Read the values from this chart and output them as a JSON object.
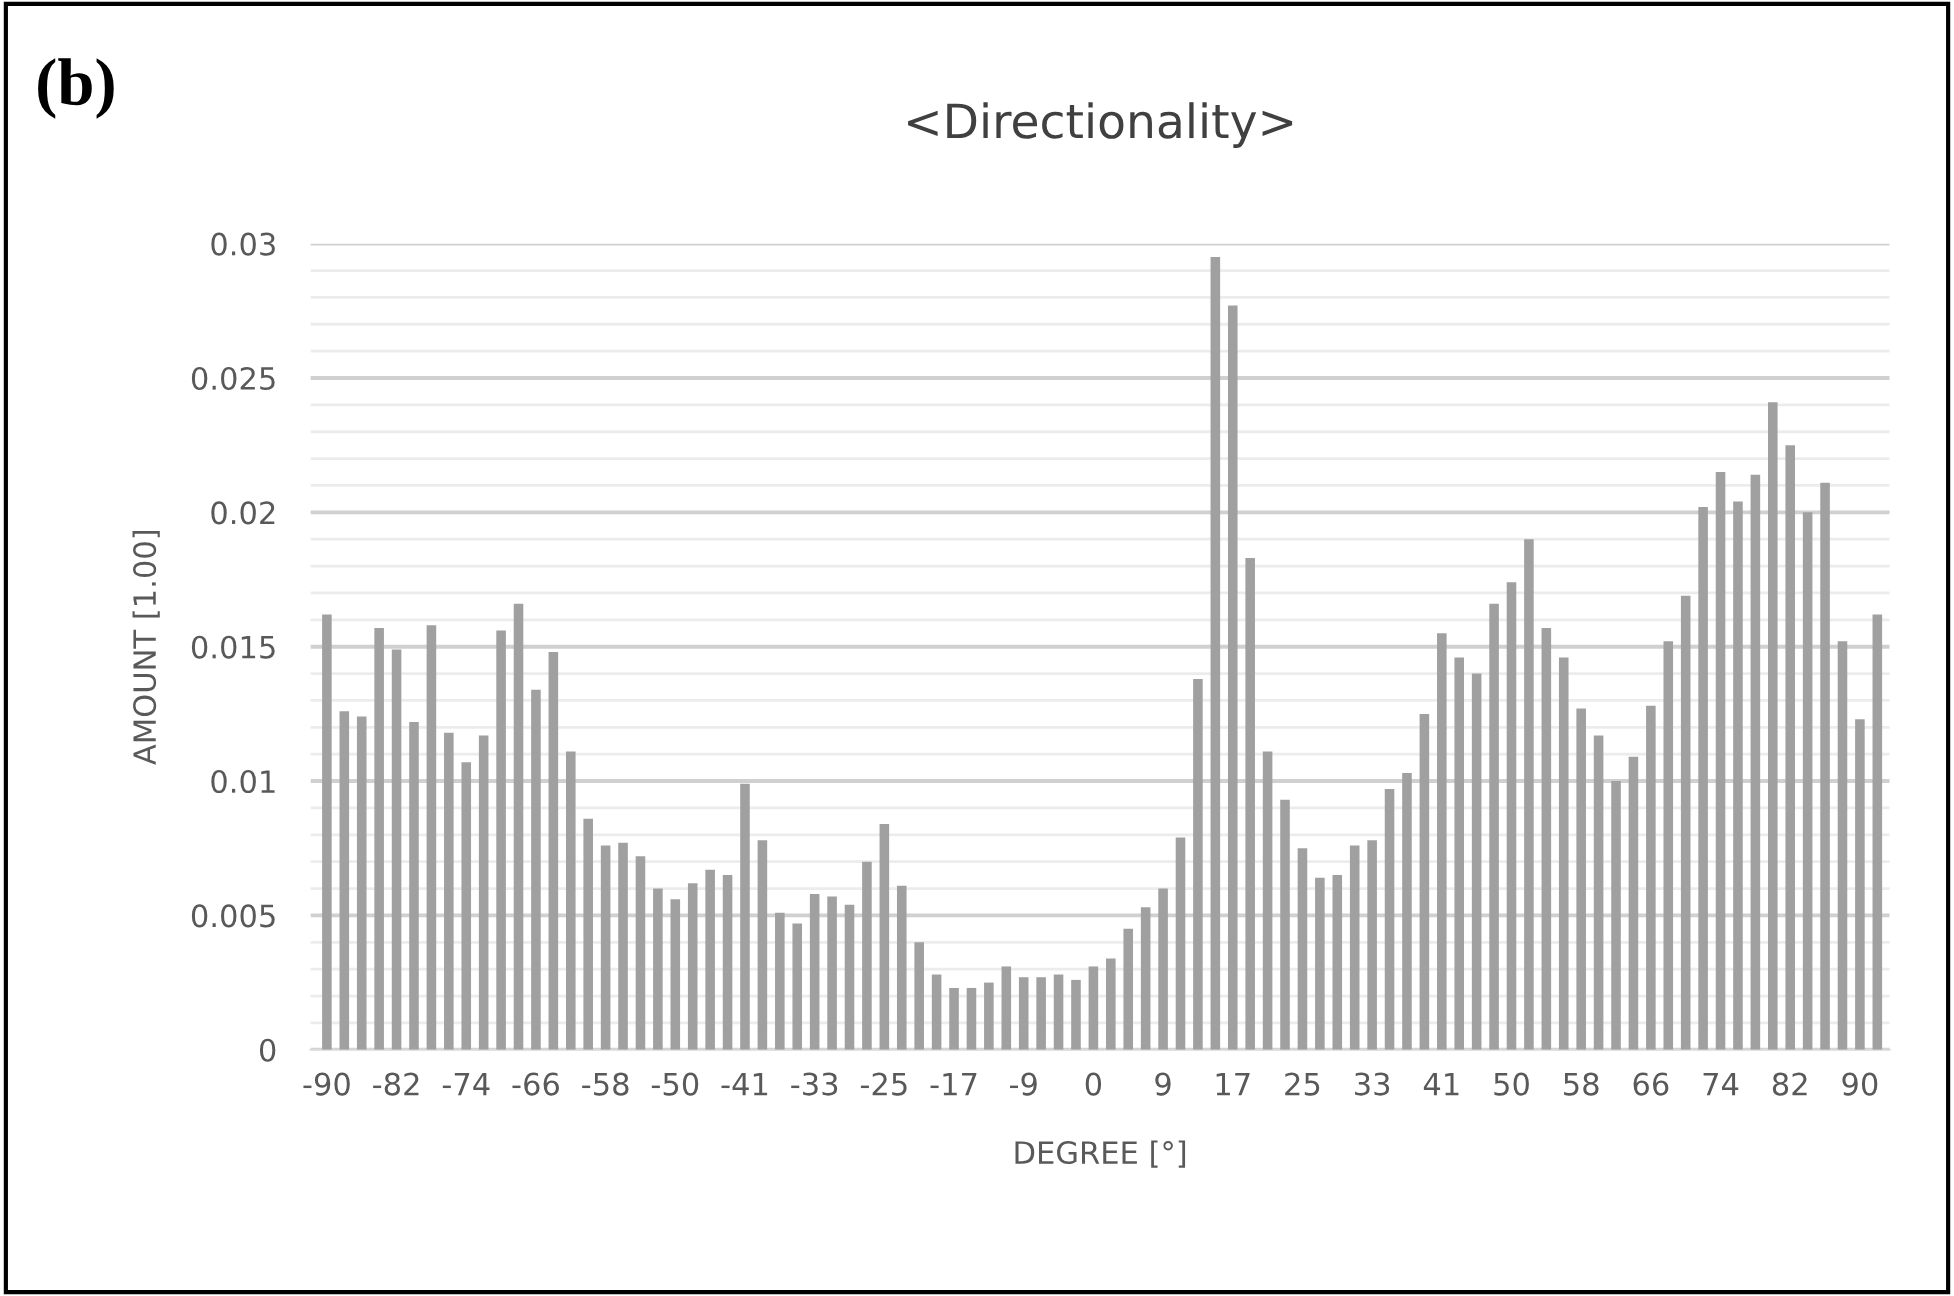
{
  "chart_data": {
    "type": "bar",
    "title": "<Directionality>",
    "xlabel": "DEGREE [°]",
    "ylabel": "AMOUNT [1.00]",
    "annotations": [
      "(b)"
    ],
    "categories": [
      "-90",
      null,
      null,
      null,
      "-82",
      null,
      null,
      null,
      "-74",
      null,
      null,
      null,
      "-66",
      null,
      null,
      null,
      "-58",
      null,
      null,
      null,
      "-50",
      null,
      null,
      null,
      "-41",
      null,
      null,
      null,
      "-33",
      null,
      null,
      null,
      "-25",
      null,
      null,
      null,
      "-17",
      null,
      null,
      null,
      "-9",
      null,
      null,
      null,
      "0",
      null,
      null,
      null,
      "9",
      null,
      null,
      null,
      "17",
      null,
      null,
      null,
      "25",
      null,
      null,
      null,
      "33",
      null,
      null,
      null,
      "41",
      null,
      null,
      null,
      "50",
      null,
      null,
      null,
      "58",
      null,
      null,
      null,
      "66",
      null,
      null,
      null,
      "74",
      null,
      null,
      null,
      "82",
      null,
      null,
      null,
      "90",
      null
    ],
    "values": [
      0.0162,
      0.0126,
      0.0124,
      0.0157,
      0.0149,
      0.0122,
      0.0158,
      0.0118,
      0.0107,
      0.0117,
      0.0156,
      0.0166,
      0.0134,
      0.0148,
      0.0111,
      0.0086,
      0.0076,
      0.0077,
      0.0072,
      0.006,
      0.0056,
      0.0062,
      0.0067,
      0.0065,
      0.0099,
      0.0078,
      0.0051,
      0.0047,
      0.0058,
      0.0057,
      0.0054,
      0.007,
      0.0084,
      0.0061,
      0.004,
      0.0028,
      0.0023,
      0.0023,
      0.0025,
      0.0031,
      0.0027,
      0.0027,
      0.0028,
      0.0026,
      0.0031,
      0.0034,
      0.0045,
      0.0053,
      0.006,
      0.0079,
      0.0138,
      0.0295,
      0.0277,
      0.0183,
      0.0111,
      0.0093,
      0.0075,
      0.0064,
      0.0065,
      0.0076,
      0.0078,
      0.0097,
      0.0103,
      0.0125,
      0.0155,
      0.0146,
      0.014,
      0.0166,
      0.0174,
      0.019,
      0.0157,
      0.0146,
      0.0127,
      0.0117,
      0.01,
      0.0109,
      0.0128,
      0.0152,
      0.0169,
      0.0202,
      0.0215,
      0.0204,
      0.0214,
      0.0241,
      0.0225,
      0.02,
      0.0211,
      0.0152,
      0.0123,
      0.0162
    ],
    "color": "#a0a0a0",
    "ylim": [
      0,
      0.03
    ],
    "yticks": [
      0,
      {
        "value": 0.001,
        "label": null
      },
      {
        "value": 0.002,
        "label": null
      },
      {
        "value": 0.003,
        "label": null
      },
      {
        "value": 0.004,
        "label": null
      },
      0.005,
      {
        "value": 0.006,
        "label": null
      },
      {
        "value": 0.007,
        "label": null
      },
      {
        "value": 0.008,
        "label": null
      },
      {
        "value": 0.009,
        "label": null
      },
      0.01,
      {
        "value": 0.011,
        "label": null
      },
      {
        "value": 0.012,
        "label": null
      },
      {
        "value": 0.013,
        "label": null
      },
      {
        "value": 0.014,
        "label": null
      },
      0.015,
      {
        "value": 0.016,
        "label": null
      },
      {
        "value": 0.017,
        "label": null
      },
      {
        "value": 0.018,
        "label": null
      },
      {
        "value": 0.019,
        "label": null
      },
      0.02,
      {
        "value": 0.021,
        "label": null
      },
      {
        "value": 0.022,
        "label": null
      },
      {
        "value": 0.023,
        "label": null
      },
      {
        "value": 0.024,
        "label": null
      },
      0.025,
      {
        "value": 0.026,
        "label": null
      },
      {
        "value": 0.027,
        "label": null
      },
      {
        "value": 0.028,
        "label": null
      },
      {
        "value": 0.029,
        "label": null
      },
      0.03
    ],
    "grid": "y"
  }
}
